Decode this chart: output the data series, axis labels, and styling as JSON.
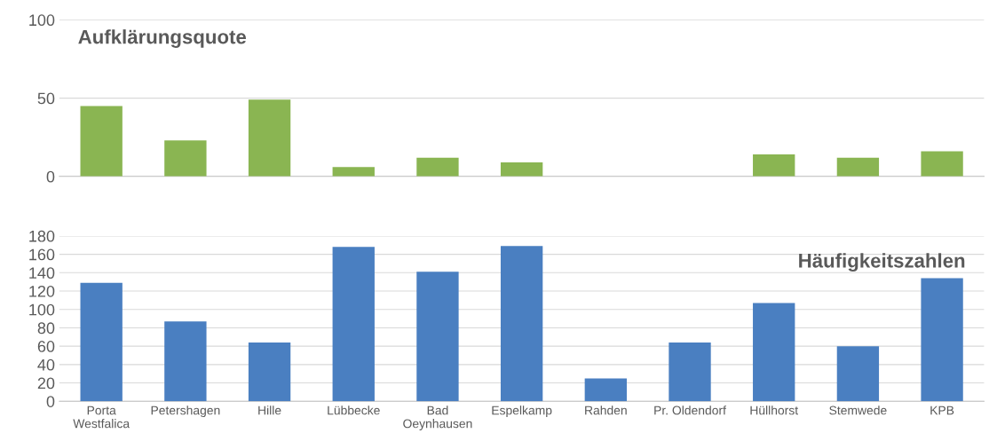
{
  "chart_data": [
    {
      "type": "bar",
      "title": "Aufklärungsquote",
      "categories": [
        null,
        null,
        null,
        null,
        null,
        null,
        null,
        null,
        null,
        null,
        null
      ],
      "values": [
        45,
        23,
        49,
        6,
        12,
        9,
        null,
        null,
        14,
        12,
        16
      ],
      "color": "#8ab552",
      "ylim": [
        0,
        100
      ],
      "yticks": [
        0,
        50,
        100
      ],
      "grid": "y",
      "tick_labels": "y"
    },
    {
      "type": "bar",
      "title": "Häufigkeitszahlen",
      "categories": [
        "Porta\nWestfalica",
        "Petershagen",
        "Hille",
        "Lübbecke",
        "Bad\nOeynhausen",
        "Espelkamp",
        "Rahden",
        "Pr. Oldendorf",
        "Hüllhorst",
        "Stemwede",
        "KPB"
      ],
      "values": [
        129,
        87,
        64,
        168,
        141,
        169,
        25,
        64,
        107,
        60,
        134
      ],
      "color": "#4a7fc1",
      "ylim": [
        0,
        180
      ],
      "yticks": [
        0,
        20,
        40,
        60,
        80,
        100,
        120,
        140,
        160,
        180
      ],
      "grid": "y"
    }
  ]
}
